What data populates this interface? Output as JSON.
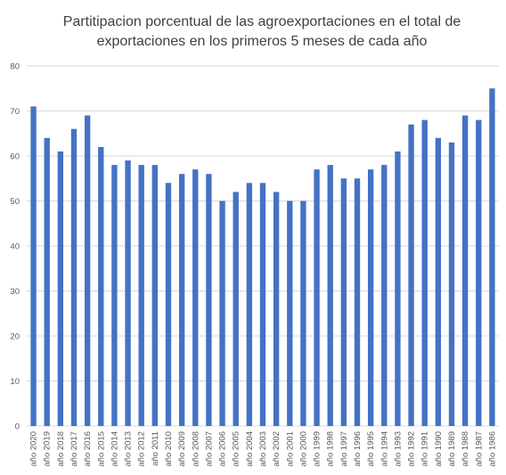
{
  "chart_data": {
    "type": "bar",
    "title_lines": [
      "Partitipacion porcentual de las agroexportaciones en el total de",
      "exportaciones en los primeros 5 meses de cada año"
    ],
    "categories": [
      "año 2020",
      "año 2019",
      "año 2018",
      "año 2017",
      "año 2016",
      "año 2015",
      "año 2014",
      "año 2013",
      "año 2012",
      "año 2011",
      "año 2010",
      "año 2009",
      "año 2008",
      "año 2007",
      "año 2006",
      "año 2005",
      "año 2004",
      "año 2003",
      "año 2002",
      "año 2001",
      "año 2000",
      "año 1999",
      "año 1998",
      "año 1997",
      "año 1996",
      "año 1995",
      "año 1994",
      "año 1993",
      "año 1992",
      "año 1991",
      "año 1990",
      "año 1989",
      "año 1988",
      "año 1987",
      "año 1986"
    ],
    "values": [
      71,
      64,
      61,
      66,
      69,
      62,
      58,
      59,
      58,
      58,
      54,
      56,
      57,
      56,
      50,
      52,
      54,
      54,
      52,
      50,
      50,
      57,
      58,
      55,
      55,
      57,
      58,
      61,
      67,
      68,
      64,
      63,
      69,
      68,
      75
    ],
    "ylim": [
      0,
      80
    ],
    "yticks": [
      0,
      10,
      20,
      30,
      40,
      50,
      60,
      70,
      80
    ],
    "grid": true,
    "legend": "none",
    "bar_color": "#4472c4",
    "grid_color": "#d9d9d9"
  }
}
